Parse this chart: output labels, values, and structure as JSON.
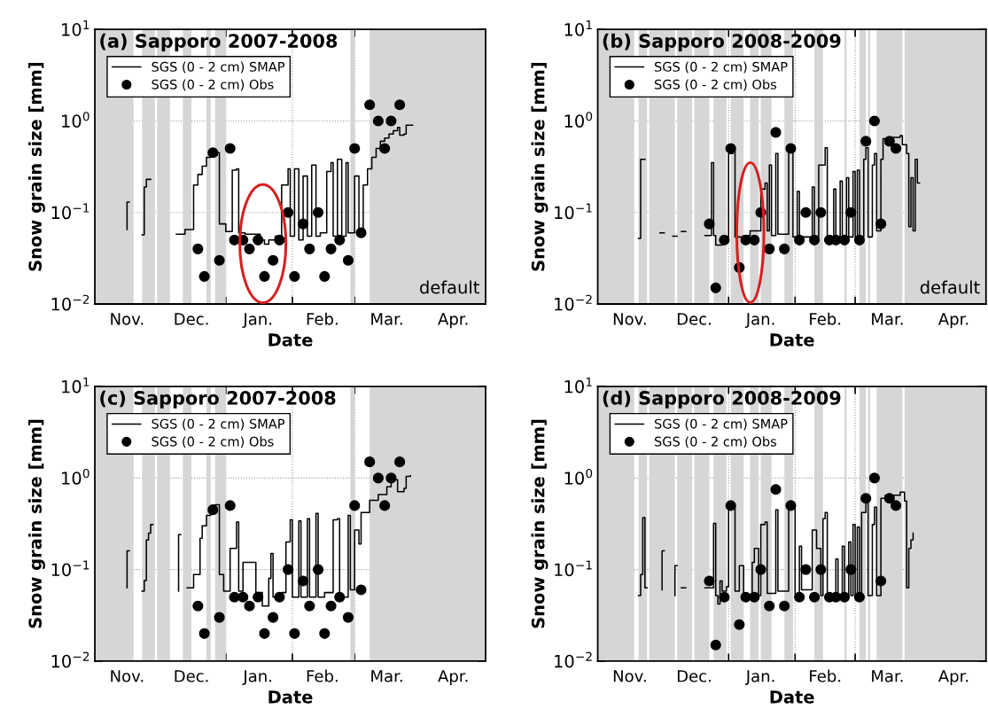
{
  "chart_data": [
    {
      "type": "step",
      "title": "(a) Sapporo 2007-2008",
      "xlabel": "Date",
      "ylabel": "Snow grain size [mm]",
      "log": "y",
      "grid": true,
      "legend": "top left",
      "annotations": [
        "default"
      ],
      "xlim": [
        "2007-11-01",
        "2008-05-01"
      ],
      "xticks": [
        {
          "value": "2007-11-16",
          "label": "Nov."
        },
        {
          "value": "2007-12-01",
          "label": null
        },
        {
          "value": "2007-12-16",
          "label": "Dec."
        },
        {
          "value": "2008-01-01",
          "label": null
        },
        {
          "value": "2008-01-16",
          "label": "Jan."
        },
        {
          "value": "2008-02-01",
          "label": null
        },
        {
          "value": "2008-02-15",
          "label": "Feb."
        },
        {
          "value": "2008-03-01",
          "label": null
        },
        {
          "value": "2008-03-16",
          "label": "Mar."
        },
        {
          "value": "2008-04-01",
          "label": null
        },
        {
          "value": "2008-04-16",
          "label": "Apr."
        }
      ],
      "ylim": [
        0.01,
        10
      ],
      "yticks": [
        {
          "value": 0.01,
          "label": "10$^{−2}$"
        },
        {
          "value": 0.1,
          "label": "10$^{−1}$"
        },
        {
          "value": 1,
          "label": "10$^{0}$"
        },
        {
          "value": 10,
          "label": "10$^{1}$"
        }
      ],
      "bands": [
        {
          "axis": "x",
          "from": "2007-11-01",
          "to": "2007-11-19",
          "color": "#d6d6d6"
        },
        {
          "axis": "x",
          "from": "2007-11-23",
          "to": "2007-11-29",
          "color": "#d6d6d6"
        },
        {
          "axis": "x",
          "from": "2007-11-30",
          "to": "2007-12-06",
          "color": "#d6d6d6"
        },
        {
          "axis": "x",
          "from": "2007-12-12",
          "to": "2007-12-16",
          "color": "#d6d6d6"
        },
        {
          "axis": "x",
          "from": "2007-12-23",
          "to": "2007-12-25",
          "color": "#d6d6d6"
        },
        {
          "axis": "x",
          "from": "2007-12-27",
          "to": "2008-01-01",
          "color": "#d6d6d6"
        },
        {
          "axis": "x",
          "from": "2008-02-28",
          "to": "2008-03-01",
          "color": "#d6d6d6"
        },
        {
          "axis": "x",
          "from": "2008-03-08",
          "to": "2008-05-01",
          "color": "#d6d6d6"
        }
      ],
      "series": [
        {
          "name": "SGS (0 - 2 cm) SMAP",
          "color": "#000000",
          "line_style": "solid",
          "x": [
            "2007-11-16",
            "2007-11-16",
            "2007-11-17",
            "2007-11-23",
            "2007-11-24",
            "2007-11-25",
            "2007-11-26",
            "2007-11-27",
            "2007-12-09",
            "2007-12-12",
            "2007-12-13",
            "2007-12-16",
            "2007-12-17",
            "2007-12-19",
            "2007-12-21",
            "2007-12-23",
            "2007-12-25",
            "2007-12-28",
            "2007-12-29",
            "2008-01-01",
            "2008-01-02",
            "2008-01-04",
            "2008-01-06",
            "2008-01-07",
            "2008-01-10",
            "2008-01-14",
            "2008-01-17",
            "2008-01-19",
            "2008-01-21",
            "2008-01-24",
            "2008-01-26",
            "2008-01-27",
            "2008-01-30",
            "2008-01-31",
            "2008-02-02",
            "2008-02-04",
            "2008-02-06",
            "2008-02-08",
            "2008-02-10",
            "2008-02-12",
            "2008-02-14",
            "2008-02-17",
            "2008-02-19",
            "2008-02-20",
            "2008-02-22",
            "2008-02-24",
            "2008-02-26",
            "2008-02-27",
            "2008-02-29",
            "2008-03-01",
            "2008-03-03",
            "2008-03-04",
            "2008-03-05",
            "2008-03-07",
            "2008-03-09",
            "2008-03-11",
            "2008-03-13",
            "2008-03-15",
            "2008-03-17",
            "2008-03-19",
            "2008-03-21",
            "2008-03-22",
            "2008-03-24",
            "2008-03-25",
            "2008-03-28"
          ],
          "values": [
            0.065,
            0.13,
            null,
            0.057,
            0.19,
            0.23,
            0.23,
            null,
            0.058,
            0.058,
            0.065,
            0.065,
            0.2,
            0.26,
            0.32,
            0.4,
            0.42,
            0.45,
            0.075,
            0.062,
            0.062,
            0.29,
            0.3,
            0.06,
            0.058,
            0.058,
            0.05,
            0.045,
            0.05,
            0.055,
            0.045,
            0.2,
            0.3,
            0.055,
            0.3,
            0.05,
            0.25,
            0.055,
            0.33,
            0.055,
            0.06,
            0.28,
            0.35,
            0.055,
            0.38,
            0.055,
            0.35,
            0.06,
            0.06,
            0.25,
            0.065,
            0.065,
            0.2,
            0.3,
            0.4,
            0.5,
            0.6,
            0.65,
            0.72,
            0.78,
            0.85,
            0.7,
            0.72,
            0.9,
            0.9
          ]
        },
        {
          "name": "SGS (0 - 2 cm) Obs",
          "type": "scatter",
          "marker": "circle",
          "color": "#000000",
          "x": [
            "2007-12-19",
            "2007-12-22",
            "2007-12-26",
            "2007-12-29",
            "2008-01-03",
            "2008-01-05",
            "2008-01-09",
            "2008-01-12",
            "2008-01-16",
            "2008-01-19",
            "2008-01-23",
            "2008-01-26",
            "2008-01-30",
            "2008-02-02",
            "2008-02-06",
            "2008-02-09",
            "2008-02-13",
            "2008-02-16",
            "2008-02-19",
            "2008-02-23",
            "2008-02-27",
            "2008-03-01",
            "2008-03-04",
            "2008-03-08",
            "2008-03-12",
            "2008-03-15",
            "2008-03-18",
            "2008-03-22"
          ],
          "values": [
            0.04,
            0.02,
            0.45,
            0.03,
            0.5,
            0.05,
            0.05,
            0.04,
            0.05,
            0.02,
            0.03,
            0.05,
            0.1,
            0.02,
            0.075,
            0.04,
            0.1,
            0.02,
            0.04,
            0.05,
            0.03,
            0.5,
            0.06,
            1.5,
            1.0,
            0.5,
            1.0,
            1.5
          ]
        }
      ]
    },
    {
      "type": "step",
      "title": "(b) Sapporo 2008-2009",
      "xlabel": "Date",
      "ylabel": "Snow grain size [mm]",
      "log": "y",
      "grid": true,
      "legend": "top left",
      "annotations": [
        "default"
      ],
      "xlim": [
        "2008-11-01",
        "2009-05-01"
      ],
      "xticks": [
        {
          "value": "2008-11-16",
          "label": "Nov."
        },
        {
          "value": "2008-12-01",
          "label": null
        },
        {
          "value": "2008-12-16",
          "label": "Dec."
        },
        {
          "value": "2009-01-01",
          "label": null
        },
        {
          "value": "2009-01-16",
          "label": "Jan."
        },
        {
          "value": "2009-02-01",
          "label": null
        },
        {
          "value": "2009-02-15",
          "label": "Feb."
        },
        {
          "value": "2009-03-01",
          "label": null
        },
        {
          "value": "2009-03-16",
          "label": "Mar."
        },
        {
          "value": "2009-04-01",
          "label": null
        },
        {
          "value": "2009-04-16",
          "label": "Apr."
        }
      ],
      "ylim": [
        0.01,
        10
      ],
      "yticks": [
        {
          "value": 0.01,
          "label": "10$^{−2}$"
        },
        {
          "value": 0.1,
          "label": "10$^{−1}$"
        },
        {
          "value": 1,
          "label": "10$^{0}$"
        },
        {
          "value": 10,
          "label": "10$^{1}$"
        }
      ],
      "bands": [
        {
          "axis": "x",
          "from": "2008-11-01",
          "to": "2008-11-18",
          "color": "#d6d6d6"
        },
        {
          "axis": "x",
          "from": "2008-11-20",
          "to": "2008-11-24",
          "color": "#d6d6d6"
        },
        {
          "axis": "x",
          "from": "2008-11-25",
          "to": "2008-12-07",
          "color": "#d6d6d6"
        },
        {
          "axis": "x",
          "from": "2008-12-08",
          "to": "2008-12-15",
          "color": "#d6d6d6"
        },
        {
          "axis": "x",
          "from": "2008-12-16",
          "to": "2008-12-23",
          "color": "#d6d6d6"
        },
        {
          "axis": "x",
          "from": "2008-12-25",
          "to": "2008-12-31",
          "color": "#d6d6d6"
        },
        {
          "axis": "x",
          "from": "2009-01-02",
          "to": "2009-01-08",
          "color": "#d6d6d6"
        },
        {
          "axis": "x",
          "from": "2009-01-11",
          "to": "2009-01-15",
          "color": "#d6d6d6"
        },
        {
          "axis": "x",
          "from": "2009-01-16",
          "to": "2009-01-21",
          "color": "#d6d6d6"
        },
        {
          "axis": "x",
          "from": "2009-01-27",
          "to": "2009-01-31",
          "color": "#d6d6d6"
        },
        {
          "axis": "x",
          "from": "2009-02-10",
          "to": "2009-02-14",
          "color": "#d6d6d6"
        },
        {
          "axis": "x",
          "from": "2009-02-24",
          "to": "2009-02-25",
          "color": "#d6d6d6"
        },
        {
          "axis": "x",
          "from": "2009-03-03",
          "to": "2009-03-06",
          "color": "#d6d6d6"
        },
        {
          "axis": "x",
          "from": "2009-03-07",
          "to": "2009-03-08",
          "color": "#d6d6d6"
        },
        {
          "axis": "x",
          "from": "2009-03-11",
          "to": "2009-03-23",
          "color": "#d6d6d6"
        },
        {
          "axis": "x",
          "from": "2009-03-24",
          "to": "2009-05-01",
          "color": "#d6d6d6"
        }
      ],
      "series": [
        {
          "name": "SGS (0 - 2 cm) SMAP",
          "color": "#000000",
          "line_style": "solid",
          "x": [
            "2008-11-20",
            "2008-11-21",
            "2008-11-21",
            "2008-11-22",
            "2008-11-23",
            "2008-11-30",
            "2008-12-02",
            "2008-12-06",
            "2008-12-08",
            "2008-12-10",
            "2008-12-12",
            "2008-12-21",
            "2008-12-24",
            "2008-12-24",
            "2008-12-25",
            "2008-12-26",
            "2008-12-29",
            "2009-01-01",
            "2009-01-03",
            "2009-01-04",
            "2009-01-08",
            "2009-01-11",
            "2009-01-16",
            "2009-01-18",
            "2009-01-19",
            "2009-01-20",
            "2009-01-21",
            "2009-01-23",
            "2009-01-24",
            "2009-01-29",
            "2009-01-31",
            "2009-02-02",
            "2009-02-03",
            "2009-02-09",
            "2009-02-10",
            "2009-02-12",
            "2009-02-15",
            "2009-02-16",
            "2009-02-19",
            "2009-02-20",
            "2009-02-22",
            "2009-02-23",
            "2009-02-25",
            "2009-02-26",
            "2009-02-28",
            "2009-03-01",
            "2009-03-02",
            "2009-03-03",
            "2009-03-05",
            "2009-03-06",
            "2009-03-07",
            "2009-03-09",
            "2009-03-10",
            "2009-03-11",
            "2009-03-13",
            "2009-03-14",
            "2009-03-18",
            "2009-03-22",
            "2009-03-23",
            "2009-03-25",
            "2009-03-26",
            "2009-03-27",
            "2009-03-28",
            "2009-03-29",
            "2009-03-30",
            "2009-03-31"
          ],
          "values": [
            0.052,
            0.066,
            0.38,
            0.38,
            null,
            0.06,
            null,
            0.055,
            null,
            0.062,
            null,
            0.056,
            0.056,
            0.35,
            0.056,
            0.044,
            0.054,
            0.44,
            0.51,
            0.054,
            0.056,
            0.063,
            0.18,
            0.21,
            0.063,
            0.33,
            0.056,
            0.44,
            0.058,
            0.47,
            0.054,
            0.17,
            0.054,
            0.19,
            0.054,
            0.33,
            0.51,
            0.054,
            0.18,
            0.054,
            0.22,
            0.054,
            0.24,
            0.054,
            0.28,
            0.054,
            0.29,
            0.054,
            0.38,
            0.51,
            0.054,
            0.33,
            0.44,
            0.063,
            0.38,
            0.64,
            0.66,
            0.69,
            0.55,
            0.44,
            0.07,
            0.24,
            0.063,
            0.38,
            0.21,
            0.21
          ]
        },
        {
          "name": "SGS (0 - 2 cm) Obs",
          "type": "scatter",
          "marker": "circle",
          "color": "#000000",
          "x": [
            "2008-12-23",
            "2008-12-26",
            "2008-12-30",
            "2009-01-02",
            "2009-01-06",
            "2009-01-09",
            "2009-01-13",
            "2009-01-16",
            "2009-01-20",
            "2009-01-23",
            "2009-01-27",
            "2009-01-30",
            "2009-02-03",
            "2009-02-06",
            "2009-02-10",
            "2009-02-13",
            "2009-02-17",
            "2009-02-20",
            "2009-02-24",
            "2009-02-27",
            "2009-03-03",
            "2009-03-06",
            "2009-03-10",
            "2009-03-13",
            "2009-03-17",
            "2009-03-20"
          ],
          "values": [
            0.075,
            0.015,
            0.05,
            0.5,
            0.025,
            0.05,
            0.05,
            0.1,
            0.04,
            0.75,
            0.04,
            0.5,
            0.05,
            0.1,
            0.05,
            0.1,
            0.05,
            0.05,
            0.05,
            0.1,
            0.05,
            0.6,
            1.0,
            0.075,
            0.6,
            0.5
          ]
        }
      ]
    },
    {
      "type": "step",
      "title": "(c) Sapporo 2007-2008",
      "xlabel": "Date",
      "ylabel": "Snow grain size [mm]",
      "log": "y",
      "grid": true,
      "legend": "top left",
      "xlim": [
        "2007-11-01",
        "2008-05-01"
      ],
      "xticks": [
        {
          "value": "2007-11-16",
          "label": "Nov."
        },
        {
          "value": "2007-12-01",
          "label": null
        },
        {
          "value": "2007-12-16",
          "label": "Dec."
        },
        {
          "value": "2008-01-01",
          "label": null
        },
        {
          "value": "2008-01-16",
          "label": "Jan."
        },
        {
          "value": "2008-02-01",
          "label": null
        },
        {
          "value": "2008-02-15",
          "label": "Feb."
        },
        {
          "value": "2008-03-01",
          "label": null
        },
        {
          "value": "2008-03-16",
          "label": "Mar."
        },
        {
          "value": "2008-04-01",
          "label": null
        },
        {
          "value": "2008-04-16",
          "label": "Apr."
        }
      ],
      "ylim": [
        0.01,
        10
      ],
      "yticks": [
        {
          "value": 0.01,
          "label": "10$^{−2}$"
        },
        {
          "value": 0.1,
          "label": "10$^{−1}$"
        },
        {
          "value": 1,
          "label": "10$^{0}$"
        },
        {
          "value": 10,
          "label": "10$^{1}$"
        }
      ],
      "bands": [
        {
          "axis": "x",
          "from": "2007-11-01",
          "to": "2007-11-19",
          "color": "#d6d6d6"
        },
        {
          "axis": "x",
          "from": "2007-11-23",
          "to": "2007-11-29",
          "color": "#d6d6d6"
        },
        {
          "axis": "x",
          "from": "2007-11-30",
          "to": "2007-12-06",
          "color": "#d6d6d6"
        },
        {
          "axis": "x",
          "from": "2007-12-12",
          "to": "2007-12-16",
          "color": "#d6d6d6"
        },
        {
          "axis": "x",
          "from": "2007-12-23",
          "to": "2007-12-25",
          "color": "#d6d6d6"
        },
        {
          "axis": "x",
          "from": "2007-12-27",
          "to": "2008-01-01",
          "color": "#d6d6d6"
        },
        {
          "axis": "x",
          "from": "2008-02-28",
          "to": "2008-03-01",
          "color": "#d6d6d6"
        },
        {
          "axis": "x",
          "from": "2008-03-08",
          "to": "2008-05-01",
          "color": "#d6d6d6"
        }
      ],
      "series": [
        {
          "name": "SGS (0 - 2 cm) SMAP",
          "color": "#000000",
          "line_style": "solid",
          "x": [
            "2007-11-16",
            "2007-11-16",
            "2007-11-17",
            "2007-11-23",
            "2007-11-24",
            "2007-11-25",
            "2007-11-26",
            "2007-11-27",
            "2007-11-28",
            "2007-12-10",
            "2007-12-10",
            "2007-12-11",
            "2007-12-14",
            "2007-12-16",
            "2007-12-17",
            "2007-12-19",
            "2007-12-20",
            "2007-12-21",
            "2007-12-23",
            "2007-12-25",
            "2007-12-27",
            "2007-12-29",
            "2007-12-31",
            "2008-01-03",
            "2008-01-06",
            "2008-01-07",
            "2008-01-09",
            "2008-01-15",
            "2008-01-18",
            "2008-01-21",
            "2008-01-22",
            "2008-01-23",
            "2008-01-27",
            "2008-01-29",
            "2008-01-31",
            "2008-02-01",
            "2008-02-04",
            "2008-02-05",
            "2008-02-08",
            "2008-02-09",
            "2008-02-12",
            "2008-02-13",
            "2008-02-16",
            "2008-02-20",
            "2008-02-22",
            "2008-02-23",
            "2008-02-27",
            "2008-02-28",
            "2008-03-01",
            "2008-03-03",
            "2008-03-04",
            "2008-03-08",
            "2008-03-12",
            "2008-03-16",
            "2008-03-18",
            "2008-03-21",
            "2008-03-24",
            "2008-03-25",
            "2008-03-27"
          ],
          "values": [
            0.063,
            0.16,
            null,
            0.058,
            0.076,
            0.21,
            0.25,
            0.31,
            null,
            0.058,
            0.24,
            null,
            0.063,
            0.063,
            0.088,
            0.088,
            0.22,
            0.3,
            0.39,
            0.46,
            0.51,
            0.088,
            0.058,
            0.17,
            0.33,
            0.058,
            0.12,
            0.056,
            0.04,
            0.08,
            0.15,
            0.05,
            0.056,
            0.2,
            0.35,
            0.05,
            0.34,
            0.05,
            0.36,
            0.05,
            0.41,
            0.05,
            0.056,
            0.35,
            0.36,
            0.05,
            0.39,
            0.06,
            0.27,
            0.19,
            0.42,
            0.57,
            0.66,
            0.8,
            0.96,
            0.71,
            0.77,
            1.04,
            1.06
          ]
        },
        {
          "name": "SGS (0 - 2 cm) Obs",
          "type": "scatter",
          "marker": "circle",
          "color": "#000000",
          "x": [
            "2007-12-19",
            "2007-12-22",
            "2007-12-26",
            "2007-12-29",
            "2008-01-03",
            "2008-01-05",
            "2008-01-09",
            "2008-01-12",
            "2008-01-16",
            "2008-01-19",
            "2008-01-23",
            "2008-01-26",
            "2008-01-30",
            "2008-02-02",
            "2008-02-06",
            "2008-02-09",
            "2008-02-13",
            "2008-02-16",
            "2008-02-19",
            "2008-02-23",
            "2008-02-27",
            "2008-03-01",
            "2008-03-04",
            "2008-03-08",
            "2008-03-12",
            "2008-03-15",
            "2008-03-18",
            "2008-03-22"
          ],
          "values": [
            0.04,
            0.02,
            0.45,
            0.03,
            0.5,
            0.05,
            0.05,
            0.04,
            0.05,
            0.02,
            0.03,
            0.05,
            0.1,
            0.02,
            0.075,
            0.04,
            0.1,
            0.02,
            0.04,
            0.05,
            0.03,
            0.5,
            0.06,
            1.5,
            1.0,
            0.5,
            1.0,
            1.5
          ]
        }
      ]
    },
    {
      "type": "step",
      "title": "(d) Sapporo 2008-2009",
      "xlabel": "Date",
      "ylabel": "Snow grain size [mm]",
      "log": "y",
      "grid": true,
      "legend": "top left",
      "xlim": [
        "2008-11-01",
        "2009-05-01"
      ],
      "xticks": [
        {
          "value": "2008-11-16",
          "label": "Nov."
        },
        {
          "value": "2008-12-01",
          "label": null
        },
        {
          "value": "2008-12-16",
          "label": "Dec."
        },
        {
          "value": "2009-01-01",
          "label": null
        },
        {
          "value": "2009-01-16",
          "label": "Jan."
        },
        {
          "value": "2009-02-01",
          "label": null
        },
        {
          "value": "2009-02-15",
          "label": "Feb."
        },
        {
          "value": "2009-03-01",
          "label": null
        },
        {
          "value": "2009-03-16",
          "label": "Mar."
        },
        {
          "value": "2009-04-01",
          "label": null
        },
        {
          "value": "2009-04-16",
          "label": "Apr."
        }
      ],
      "ylim": [
        0.01,
        10
      ],
      "yticks": [
        {
          "value": 0.01,
          "label": "10$^{−2}$"
        },
        {
          "value": 0.1,
          "label": "10$^{−1}$"
        },
        {
          "value": 1,
          "label": "10$^{0}$"
        },
        {
          "value": 10,
          "label": "10$^{1}$"
        }
      ],
      "bands": [
        {
          "axis": "x",
          "from": "2008-11-01",
          "to": "2008-11-18",
          "color": "#d6d6d6"
        },
        {
          "axis": "x",
          "from": "2008-11-20",
          "to": "2008-11-24",
          "color": "#d6d6d6"
        },
        {
          "axis": "x",
          "from": "2008-11-25",
          "to": "2008-12-07",
          "color": "#d6d6d6"
        },
        {
          "axis": "x",
          "from": "2008-12-08",
          "to": "2008-12-15",
          "color": "#d6d6d6"
        },
        {
          "axis": "x",
          "from": "2008-12-16",
          "to": "2008-12-23",
          "color": "#d6d6d6"
        },
        {
          "axis": "x",
          "from": "2008-12-25",
          "to": "2008-12-31",
          "color": "#d6d6d6"
        },
        {
          "axis": "x",
          "from": "2009-01-02",
          "to": "2009-01-08",
          "color": "#d6d6d6"
        },
        {
          "axis": "x",
          "from": "2009-01-11",
          "to": "2009-01-15",
          "color": "#d6d6d6"
        },
        {
          "axis": "x",
          "from": "2009-01-16",
          "to": "2009-01-21",
          "color": "#d6d6d6"
        },
        {
          "axis": "x",
          "from": "2009-01-27",
          "to": "2009-01-31",
          "color": "#d6d6d6"
        },
        {
          "axis": "x",
          "from": "2009-02-10",
          "to": "2009-02-14",
          "color": "#d6d6d6"
        },
        {
          "axis": "x",
          "from": "2009-02-24",
          "to": "2009-02-25",
          "color": "#d6d6d6"
        },
        {
          "axis": "x",
          "from": "2009-03-03",
          "to": "2009-03-06",
          "color": "#d6d6d6"
        },
        {
          "axis": "x",
          "from": "2009-03-07",
          "to": "2009-03-08",
          "color": "#d6d6d6"
        },
        {
          "axis": "x",
          "from": "2009-03-11",
          "to": "2009-03-23",
          "color": "#d6d6d6"
        },
        {
          "axis": "x",
          "from": "2009-03-24",
          "to": "2009-05-01",
          "color": "#d6d6d6"
        }
      ],
      "series": [
        {
          "name": "SGS (0 - 2 cm) SMAP",
          "color": "#000000",
          "line_style": "solid",
          "x": [
            "2008-11-20",
            "2008-11-21",
            "2008-11-22",
            "2008-11-23",
            "2008-11-24",
            "2008-12-01",
            "2008-12-01",
            "2008-12-02",
            "2008-12-07",
            "2008-12-07",
            "2008-12-08",
            "2008-12-10",
            "2008-12-12",
            "2008-12-21",
            "2008-12-25",
            "2008-12-26",
            "2008-12-27",
            "2008-12-28",
            "2008-12-29",
            "2008-12-31",
            "2009-01-01",
            "2009-01-03",
            "2009-01-04",
            "2009-01-06",
            "2009-01-08",
            "2009-01-12",
            "2009-01-13",
            "2009-01-15",
            "2009-01-16",
            "2009-01-18",
            "2009-01-19",
            "2009-01-23",
            "2009-01-24",
            "2009-01-29",
            "2009-02-01",
            "2009-02-03",
            "2009-02-04",
            "2009-02-09",
            "2009-02-11",
            "2009-02-13",
            "2009-02-14",
            "2009-02-15",
            "2009-02-16",
            "2009-02-20",
            "2009-02-21",
            "2009-02-23",
            "2009-02-24",
            "2009-02-26",
            "2009-02-27",
            "2009-02-28",
            "2009-03-01",
            "2009-03-02",
            "2009-03-03",
            "2009-03-04",
            "2009-03-06",
            "2009-03-07",
            "2009-03-09",
            "2009-03-10",
            "2009-03-11",
            "2009-03-13",
            "2009-03-15",
            "2009-03-22",
            "2009-03-24",
            "2009-03-25",
            "2009-03-26",
            "2009-03-27",
            "2009-03-28"
          ],
          "values": [
            0.052,
            0.088,
            0.37,
            0.063,
            null,
            0.06,
            0.16,
            null,
            0.052,
            0.11,
            null,
            0.063,
            null,
            0.063,
            0.32,
            0.052,
            0.042,
            0.075,
            0.058,
            0.065,
            0.48,
            0.5,
            0.058,
            0.11,
            0.052,
            0.12,
            0.17,
            0.052,
            0.31,
            0.33,
            0.055,
            0.45,
            0.058,
            0.48,
            0.052,
            0.18,
            0.06,
            0.27,
            0.17,
            0.052,
            0.36,
            0.42,
            0.052,
            0.13,
            0.052,
            0.18,
            0.052,
            0.2,
            0.052,
            0.31,
            0.052,
            0.29,
            0.052,
            0.42,
            0.56,
            0.052,
            0.31,
            0.48,
            0.052,
            0.6,
            0.65,
            0.7,
            0.56,
            0.063,
            0.17,
            0.21,
            0.25
          ]
        },
        {
          "name": "SGS (0 - 2 cm) Obs",
          "type": "scatter",
          "marker": "circle",
          "color": "#000000",
          "x": [
            "2008-12-23",
            "2008-12-26",
            "2008-12-30",
            "2009-01-02",
            "2009-01-06",
            "2009-01-09",
            "2009-01-13",
            "2009-01-16",
            "2009-01-20",
            "2009-01-23",
            "2009-01-27",
            "2009-01-30",
            "2009-02-03",
            "2009-02-06",
            "2009-02-10",
            "2009-02-13",
            "2009-02-17",
            "2009-02-20",
            "2009-02-24",
            "2009-02-27",
            "2009-03-03",
            "2009-03-06",
            "2009-03-10",
            "2009-03-13",
            "2009-03-17",
            "2009-03-20"
          ],
          "values": [
            0.075,
            0.015,
            0.05,
            0.5,
            0.025,
            0.05,
            0.05,
            0.1,
            0.04,
            0.75,
            0.04,
            0.5,
            0.05,
            0.1,
            0.05,
            0.1,
            0.05,
            0.05,
            0.05,
            0.1,
            0.05,
            0.6,
            1.0,
            0.075,
            0.6,
            0.5
          ]
        }
      ]
    }
  ]
}
